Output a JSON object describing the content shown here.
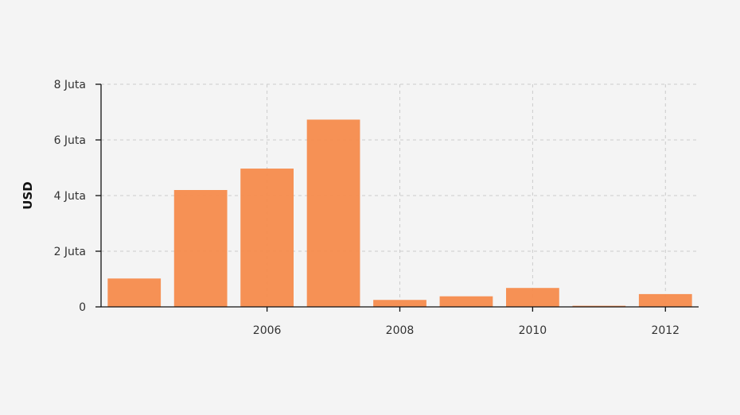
{
  "chart_data": {
    "type": "bar",
    "x": [
      2004,
      2005,
      2006,
      2007,
      2008,
      2009,
      2010,
      2011,
      2012
    ],
    "values": [
      1020000,
      4200000,
      4970000,
      6730000,
      250000,
      380000,
      680000,
      40000,
      460000
    ],
    "bar_color": "#f58b4c",
    "ylabel": "USD",
    "xlabel": "",
    "title": "",
    "ylim": [
      0,
      8000000
    ],
    "xlim": [
      2003.5,
      2012.5
    ],
    "y_ticks": [
      {
        "value": 0,
        "label": "0"
      },
      {
        "value": 2000000,
        "label": "2 Juta"
      },
      {
        "value": 4000000,
        "label": "4 Juta"
      },
      {
        "value": 6000000,
        "label": "6 Juta"
      },
      {
        "value": 8000000,
        "label": "8 Juta"
      }
    ],
    "x_ticks": [
      {
        "value": 2006,
        "label": "2006"
      },
      {
        "value": 2008,
        "label": "2008"
      },
      {
        "value": 2010,
        "label": "2010"
      },
      {
        "value": 2012,
        "label": "2012"
      }
    ],
    "grid": true,
    "legend": "none"
  }
}
